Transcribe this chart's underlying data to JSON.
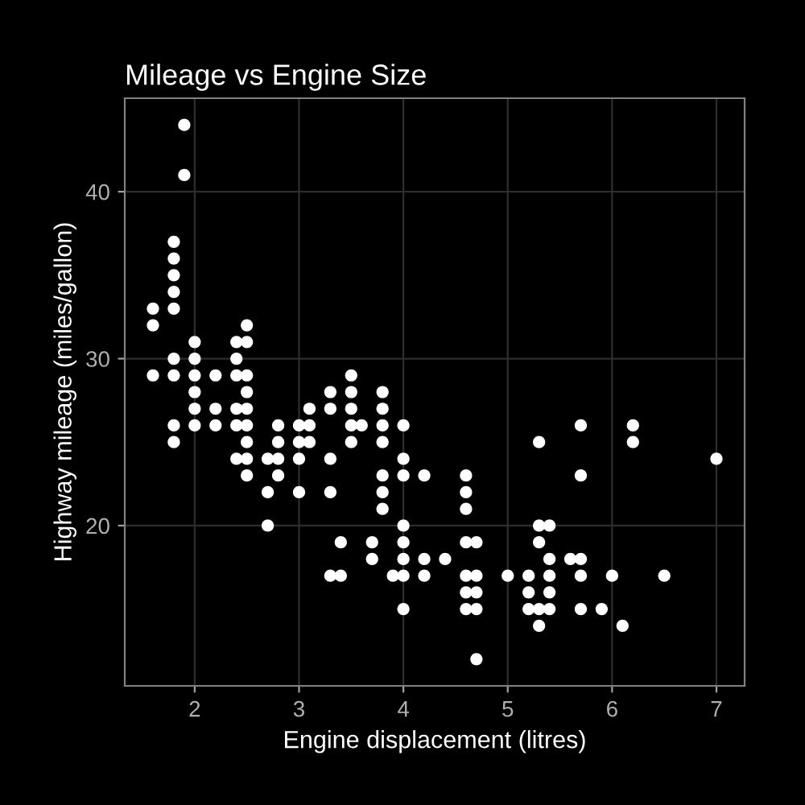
{
  "chart_data": {
    "type": "scatter",
    "title": "Mileage vs Engine Size",
    "xlabel": "Engine displacement (litres)",
    "ylabel": "Highway mileage (miles/gallon)",
    "x": [
      1.9,
      1.9,
      1.6,
      1.6,
      1.6,
      1.8,
      1.8,
      1.8,
      1.8,
      1.8,
      1.8,
      1.8,
      1.8,
      1.8,
      2.0,
      2.0,
      2.0,
      2.0,
      2.0,
      2.0,
      2.2,
      2.2,
      2.2,
      2.4,
      2.4,
      2.4,
      2.4,
      2.4,
      2.4,
      2.5,
      2.5,
      2.5,
      2.5,
      2.5,
      2.5,
      2.5,
      2.5,
      2.5,
      2.7,
      2.7,
      2.7,
      2.8,
      2.8,
      2.8,
      2.8,
      3.0,
      3.0,
      3.0,
      3.0,
      3.1,
      3.1,
      3.1,
      3.3,
      3.3,
      3.3,
      3.3,
      3.3,
      3.4,
      3.4,
      3.5,
      3.5,
      3.5,
      3.5,
      3.5,
      3.6,
      3.7,
      3.7,
      3.8,
      3.8,
      3.8,
      3.8,
      3.8,
      3.8,
      3.8,
      3.9,
      4.0,
      4.0,
      4.0,
      4.0,
      4.0,
      4.0,
      4.0,
      4.0,
      4.2,
      4.2,
      4.2,
      4.4,
      4.6,
      4.6,
      4.6,
      4.6,
      4.6,
      4.6,
      4.6,
      4.7,
      4.7,
      4.7,
      4.7,
      4.7,
      5.0,
      5.2,
      5.2,
      5.2,
      5.3,
      5.3,
      5.3,
      5.3,
      5.3,
      5.4,
      5.4,
      5.4,
      5.4,
      5.4,
      5.6,
      5.7,
      5.7,
      5.7,
      5.7,
      5.7,
      5.9,
      6.0,
      6.1,
      6.2,
      6.2,
      6.5,
      7.0
    ],
    "values": [
      44,
      41,
      33,
      32,
      29,
      37,
      36,
      35,
      34,
      33,
      30,
      29,
      26,
      25,
      31,
      30,
      29,
      28,
      27,
      26,
      29,
      27,
      26,
      31,
      30,
      29,
      27,
      26,
      24,
      32,
      31,
      29,
      28,
      27,
      26,
      25,
      24,
      23,
      24,
      22,
      20,
      26,
      25,
      24,
      23,
      26,
      25,
      24,
      22,
      27,
      26,
      25,
      28,
      27,
      24,
      22,
      17,
      19,
      17,
      29,
      28,
      27,
      26,
      25,
      26,
      19,
      18,
      28,
      27,
      26,
      25,
      23,
      22,
      21,
      17,
      26,
      24,
      23,
      20,
      19,
      18,
      17,
      15,
      23,
      18,
      17,
      18,
      23,
      22,
      21,
      19,
      17,
      16,
      15,
      19,
      17,
      16,
      15,
      12,
      17,
      17,
      16,
      15,
      25,
      20,
      19,
      15,
      14,
      20,
      18,
      17,
      16,
      15,
      18,
      26,
      23,
      18,
      17,
      15,
      15,
      17,
      14,
      26,
      25,
      17,
      24
    ],
    "color": "#ffffff",
    "marker": "circle",
    "xlim": [
      1.33,
      7.27
    ],
    "ylim": [
      10.4,
      45.6
    ],
    "xticks": [
      2,
      3,
      4,
      5,
      6,
      7
    ],
    "yticks": [
      20,
      30,
      40
    ],
    "grid": true
  }
}
